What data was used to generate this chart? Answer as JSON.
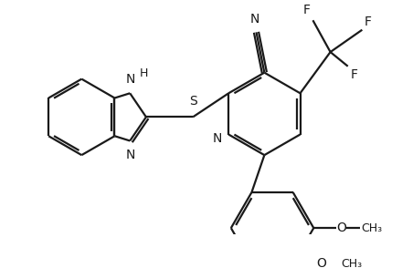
{
  "bg_color": "#ffffff",
  "line_color": "#1a1a1a",
  "line_width": 1.6,
  "font_size": 10,
  "figsize": [
    4.4,
    2.94
  ],
  "dpi": 100,
  "xlim": [
    0,
    440
  ],
  "ylim": [
    0,
    294
  ]
}
